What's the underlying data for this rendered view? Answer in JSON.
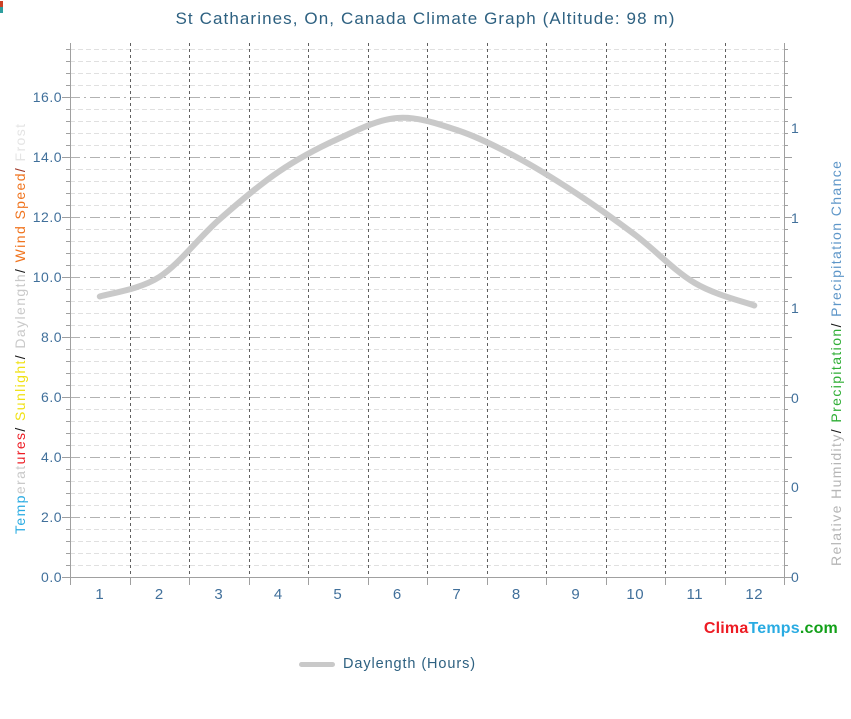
{
  "title": {
    "text": "St Catharines, On, Canada Climate Graph (Altitude: 98 m)",
    "color": "#2e6181"
  },
  "corner_mark": {
    "colors": [
      "#cc4125",
      "#2e9e9e"
    ]
  },
  "left_axis": {
    "tick_color": "#41709b",
    "label_segments": [
      {
        "text": "Temp",
        "color": "#29abe2"
      },
      {
        "text": "erat",
        "color": "#c9c9c9"
      },
      {
        "text": "ures",
        "color": "#ed1c24"
      },
      {
        "text": "/ ",
        "color": "#1a1a1a"
      },
      {
        "text": "Sunlight",
        "color": "#f0e113"
      },
      {
        "text": "/ ",
        "color": "#1a1a1a"
      },
      {
        "text": "Daylength",
        "color": "#c9c9c9"
      },
      {
        "text": "/ ",
        "color": "#1a1a1a"
      },
      {
        "text": "Wind Speed",
        "color": "#f0741e"
      },
      {
        "text": "/ ",
        "color": "#a03a2a"
      },
      {
        "text": "Frost",
        "color": "#e4e4e4"
      }
    ]
  },
  "right_axis": {
    "tick_color": "#41709b",
    "label_segments": [
      {
        "text": "Relative Humidity",
        "color": "#b5b5b5"
      },
      {
        "text": "/ ",
        "color": "#1a1a1a"
      },
      {
        "text": "Precipitation",
        "color": "#2fae35"
      },
      {
        "text": "/ ",
        "color": "#1a1a1a"
      },
      {
        "text": "Precipitation Chance",
        "color": "#5e96c8"
      }
    ]
  },
  "legend": {
    "label": "Daylength (Hours)",
    "line_color": "#c9c9c9",
    "text_color": "#2e6181",
    "position": "bottom-center"
  },
  "branding": {
    "segments": [
      {
        "text": "Clima",
        "color": "#ed1c24"
      },
      {
        "text": "Temps",
        "color": "#29abe2"
      },
      {
        "text": ".com",
        "color": "#12a019"
      }
    ]
  },
  "chart_data": {
    "type": "line",
    "title": "St Catharines, On, Canada Climate Graph (Altitude: 98 m)",
    "x": [
      1,
      2,
      3,
      4,
      5,
      6,
      7,
      8,
      9,
      10,
      11,
      12
    ],
    "x_tick_labels": [
      "1",
      "2",
      "3",
      "4",
      "5",
      "6",
      "7",
      "8",
      "9",
      "10",
      "11",
      "12"
    ],
    "series": [
      {
        "name": "Daylength (Hours)",
        "color": "#c9c9c9",
        "stroke_width": 6,
        "values": [
          9.35,
          10.0,
          11.9,
          13.5,
          14.6,
          15.3,
          14.9,
          14.0,
          12.8,
          11.4,
          9.8,
          9.05
        ]
      }
    ],
    "left_axis": {
      "lim": [
        0,
        17.8
      ],
      "ticks": [
        0,
        2,
        4,
        6,
        8,
        10,
        12,
        14,
        16
      ],
      "tick_decimals": 1
    },
    "right_axis": {
      "lim": [
        0,
        1.19
      ],
      "tick_values": [
        0,
        0.2,
        0.4,
        0.6,
        0.8,
        1.0
      ],
      "tick_labels": [
        "0",
        "0",
        "0",
        "1",
        "1",
        "1"
      ]
    },
    "grid": {
      "minor_step": 0.4,
      "major_step": 2.0,
      "minor_color": "#e0e0e0",
      "major_color": "#b2b2b2",
      "month_line_color": "#5f5f5f",
      "axis_color": "#a0a0a0"
    },
    "legend_position": "bottom-center"
  }
}
